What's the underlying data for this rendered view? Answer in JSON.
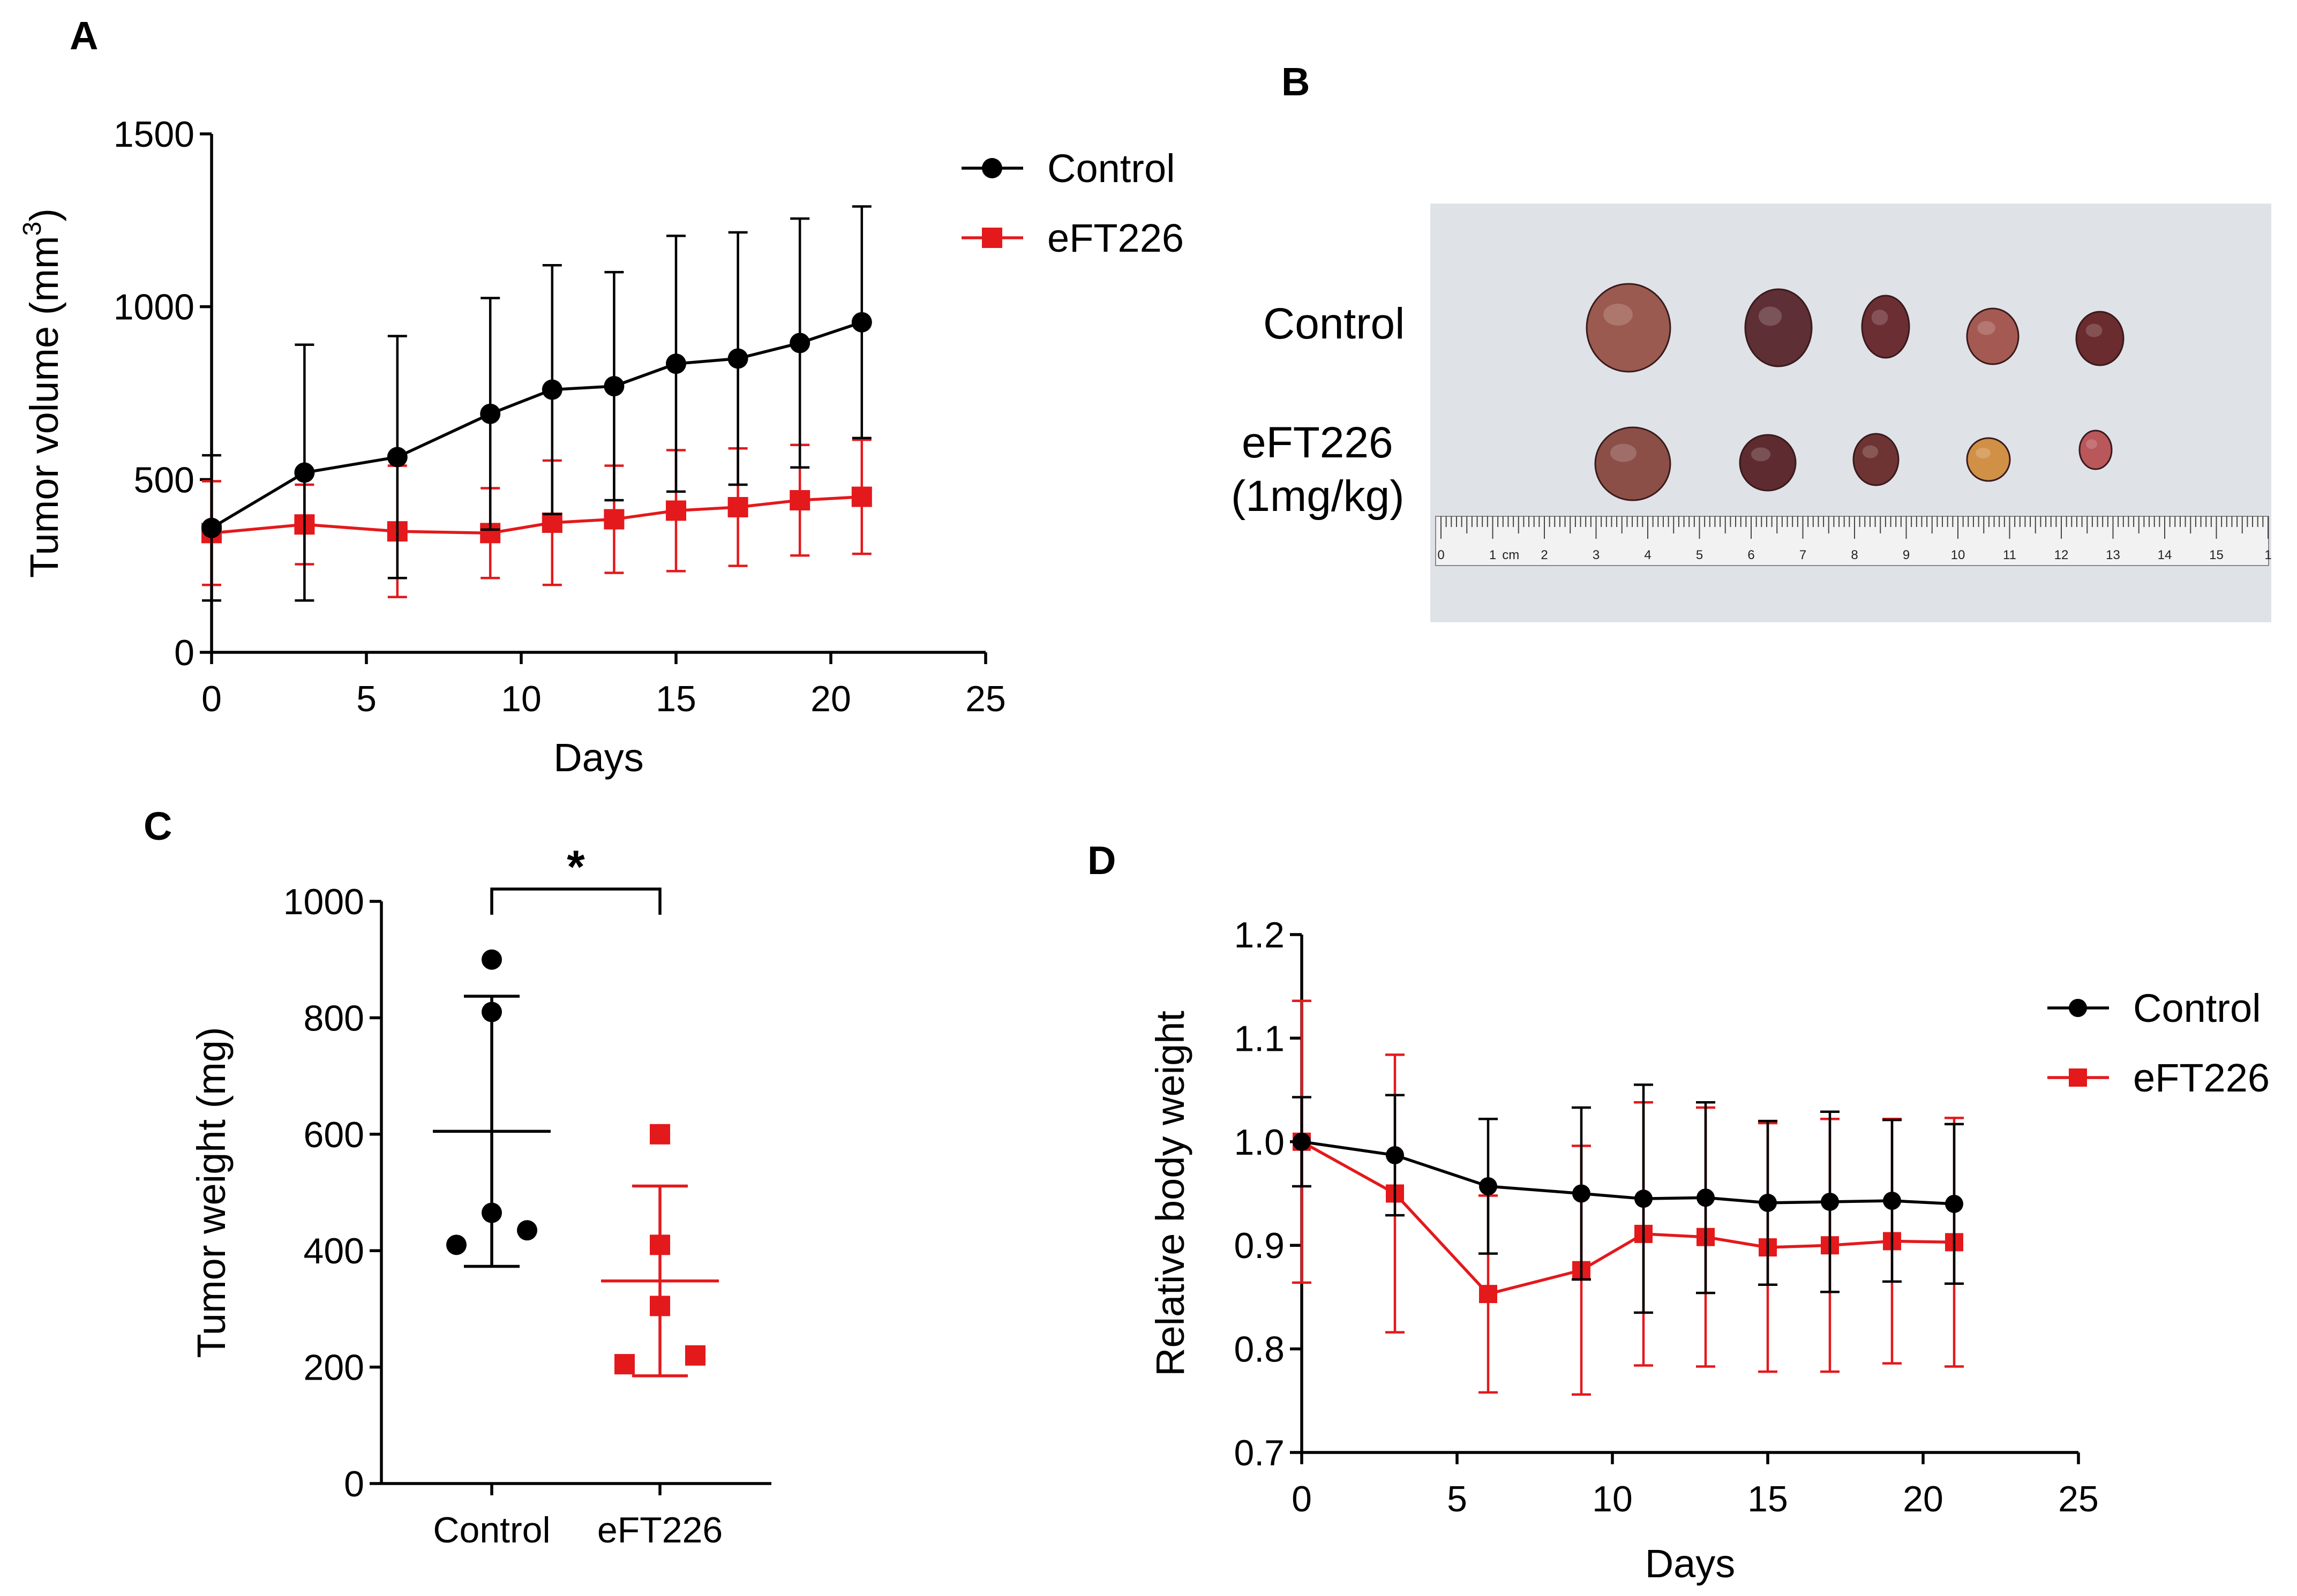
{
  "colors": {
    "control": "#000000",
    "eft226": "#e3191c",
    "photo_bg": "#dfe3e8"
  },
  "panels": {
    "A": {
      "letter": "A"
    },
    "B": {
      "letter": "B",
      "row_control": "Control",
      "row_eft_line1": "eFT226",
      "row_eft_line2": "(1mg/kg)",
      "ruler_labels": [
        "0",
        "1",
        "cm",
        "2",
        "3",
        "4",
        "5",
        "6",
        "7",
        "8",
        "9",
        "10",
        "11",
        "12",
        "13",
        "14",
        "15",
        "1"
      ]
    },
    "C": {
      "letter": "C"
    },
    "D": {
      "letter": "D"
    }
  },
  "chart_data": [
    {
      "id": "A",
      "type": "line",
      "xlabel": "Days",
      "ylabel": "Tumor volume (mm",
      "ylabel_superscript": "3",
      "ylabel_close": ")",
      "xlim": [
        0,
        25
      ],
      "ylim": [
        0,
        1500
      ],
      "xticks": [
        0,
        5,
        10,
        15,
        20,
        25
      ],
      "xtick_labels": [
        "0",
        "5",
        "10",
        "15",
        "20",
        "25"
      ],
      "yticks": [
        0,
        500,
        1000,
        1500
      ],
      "ytick_labels": [
        "0",
        "500",
        "1000",
        "1500"
      ],
      "legend": [
        "Control",
        "eFT226"
      ],
      "series": [
        {
          "name": "Control",
          "marker": "circle",
          "x": [
            0,
            3,
            6,
            9,
            11,
            13,
            15,
            17,
            19,
            21
          ],
          "y": [
            360,
            520,
            565,
            690,
            760,
            770,
            835,
            850,
            895,
            955
          ],
          "err": [
            210,
            370,
            350,
            335,
            360,
            330,
            370,
            365,
            360,
            335
          ]
        },
        {
          "name": "eFT226",
          "marker": "square",
          "x": [
            0,
            3,
            6,
            9,
            11,
            13,
            15,
            17,
            19,
            21
          ],
          "y": [
            345,
            370,
            350,
            345,
            375,
            385,
            410,
            420,
            440,
            450
          ],
          "err": [
            150,
            115,
            190,
            130,
            180,
            155,
            175,
            170,
            160,
            165
          ]
        }
      ]
    },
    {
      "id": "C",
      "type": "scatter",
      "ylabel": "Tumor weight (mg)",
      "categories": [
        "Control",
        "eFT226"
      ],
      "ylim": [
        0,
        1000
      ],
      "yticks": [
        0,
        200,
        400,
        600,
        800,
        1000
      ],
      "ytick_labels": [
        "0",
        "200",
        "400",
        "600",
        "800",
        "1000"
      ],
      "significance": "*",
      "groups": [
        {
          "name": "Control",
          "marker": "circle",
          "mean": 605,
          "sd": 232,
          "points": [
            {
              "y": 900,
              "dx": 0.0
            },
            {
              "y": 810,
              "dx": 0.0
            },
            {
              "y": 465,
              "dx": 0.0
            },
            {
              "y": 435,
              "dx": 0.22
            },
            {
              "y": 410,
              "dx": -0.22
            }
          ]
        },
        {
          "name": "eFT226",
          "marker": "square",
          "mean": 348,
          "sd": 163,
          "points": [
            {
              "y": 600,
              "dx": 0.0
            },
            {
              "y": 410,
              "dx": 0.0
            },
            {
              "y": 305,
              "dx": 0.0
            },
            {
              "y": 220,
              "dx": 0.22
            },
            {
              "y": 205,
              "dx": -0.22
            }
          ]
        }
      ]
    },
    {
      "id": "D",
      "type": "line",
      "xlabel": "Days",
      "ylabel": "Relative body weight",
      "xlim": [
        0,
        25
      ],
      "ylim": [
        0.7,
        1.2
      ],
      "xticks": [
        0,
        5,
        10,
        15,
        20,
        25
      ],
      "xtick_labels": [
        "0",
        "5",
        "10",
        "15",
        "20",
        "25"
      ],
      "yticks": [
        0.7,
        0.8,
        0.9,
        1.0,
        1.1,
        1.2
      ],
      "ytick_labels": [
        "0.7",
        "0.8",
        "0.9",
        "1.0",
        "1.1",
        "1.2"
      ],
      "legend": [
        "Control",
        "eFT226"
      ],
      "series": [
        {
          "name": "Control",
          "marker": "circle",
          "x": [
            0,
            3,
            6,
            9,
            11,
            13,
            15,
            17,
            19,
            21
          ],
          "y": [
            1.0,
            0.987,
            0.957,
            0.95,
            0.945,
            0.946,
            0.941,
            0.942,
            0.943,
            0.94
          ],
          "err": [
            0.043,
            0.058,
            0.065,
            0.083,
            0.11,
            0.092,
            0.079,
            0.087,
            0.078,
            0.077
          ]
        },
        {
          "name": "eFT226",
          "marker": "square",
          "x": [
            0,
            3,
            6,
            9,
            11,
            13,
            15,
            17,
            19,
            21
          ],
          "y": [
            1.0,
            0.95,
            0.853,
            0.876,
            0.911,
            0.908,
            0.898,
            0.9,
            0.904,
            0.903
          ],
          "err": [
            0.136,
            0.134,
            0.095,
            0.12,
            0.127,
            0.125,
            0.12,
            0.122,
            0.118,
            0.12
          ]
        }
      ]
    }
  ]
}
